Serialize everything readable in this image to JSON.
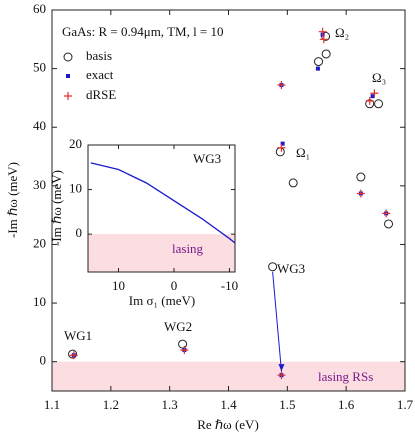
{
  "chart_data": [
    {
      "type": "scatter",
      "annotation": "GaAs: R = 0.94μm, TM, l = 10",
      "xlabel": "Re ℏω (eV)",
      "ylabel": "-Im ℏω (meV)",
      "xlim": [
        1.1,
        1.7
      ],
      "ylim": [
        -5,
        60
      ],
      "xticks": [
        1.1,
        1.2,
        1.3,
        1.4,
        1.5,
        1.6,
        1.7
      ],
      "yticks": [
        0,
        10,
        20,
        30,
        40,
        50,
        60
      ],
      "labels": [
        "Ω₂",
        "Ω₃",
        "Ω₁",
        "WG1",
        "WG2",
        "WG3",
        "lasing RSs"
      ],
      "series": [
        {
          "name": "basis",
          "color": "#222222",
          "marker": "circle",
          "x": [
            1.135,
            1.322,
            1.475,
            1.488,
            1.51,
            1.553,
            1.565,
            1.566,
            1.64,
            1.655,
            1.625,
            1.672
          ],
          "values": [
            1.3,
            3.0,
            16.2,
            35.8,
            30.5,
            51.2,
            55.5,
            52.5,
            44.0,
            44.0,
            31.5,
            23.5
          ]
        },
        {
          "name": "exact",
          "color": "#1a1acc",
          "marker": "square",
          "x": [
            1.137,
            1.325,
            1.49,
            1.492,
            1.49,
            1.552,
            1.56,
            1.625,
            1.668,
            1.645
          ],
          "values": [
            1.1,
            2.0,
            -2.3,
            37.2,
            47.2,
            50.0,
            55.8,
            28.7,
            25.3,
            45.3
          ]
        },
        {
          "name": "dRSE",
          "color": "#e03030",
          "marker": "plus",
          "x": [
            1.137,
            1.325,
            1.49,
            1.49,
            1.49,
            1.56,
            1.562,
            1.64,
            1.648,
            1.625,
            1.668
          ],
          "values": [
            1.1,
            2.0,
            -2.3,
            36.5,
            47.2,
            56.3,
            55.0,
            44.5,
            45.8,
            28.7,
            25.3
          ]
        }
      ]
    },
    {
      "type": "line",
      "title": "WG3",
      "xlabel": "Im σ₁ (meV)",
      "ylabel": "-Im ℏω (meV)",
      "region_label": "lasing",
      "xlim": [
        15.5,
        -11
      ],
      "ylim": [
        -8.5,
        20
      ],
      "xticks": [
        10,
        0,
        -10
      ],
      "yticks": [
        0,
        10,
        20
      ],
      "color": "#1a1acc",
      "x": [
        15,
        10,
        5,
        0,
        -5,
        -10,
        -11
      ],
      "values": [
        16,
        14.5,
        11.5,
        7.5,
        3.5,
        -1,
        -2
      ]
    }
  ]
}
